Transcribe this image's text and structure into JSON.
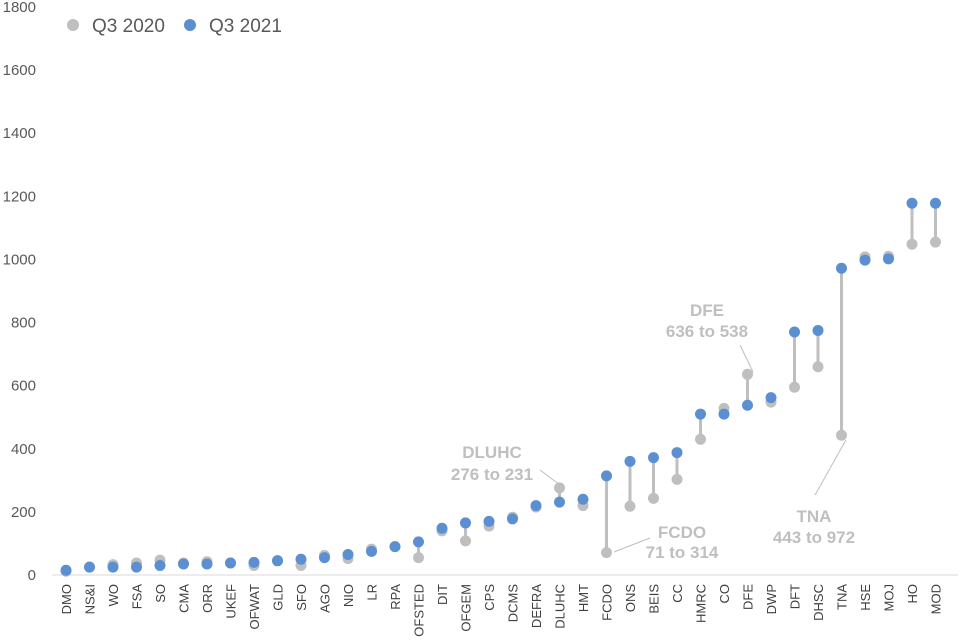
{
  "chart_data": {
    "type": "scatter",
    "categories": [
      "DMO",
      "NS&I",
      "WO",
      "FSA",
      "SO",
      "CMA",
      "ORR",
      "UKEF",
      "OFWAT",
      "GLD",
      "SFO",
      "AGO",
      "NIO",
      "LR",
      "RPA",
      "OFSTED",
      "DIT",
      "OFGEM",
      "CPS",
      "DCMS",
      "DEFRA",
      "DLUHC",
      "HMT",
      "FCDO",
      "ONS",
      "BEIS",
      "CC",
      "HMRC",
      "CO",
      "DFE",
      "DWP",
      "DFT",
      "DHSC",
      "TNA",
      "HSE",
      "MOJ",
      "HO",
      "MOD"
    ],
    "series": [
      {
        "name": "Q3 2020",
        "color": "#bfbfbf",
        "values": [
          12,
          25,
          33,
          38,
          47,
          38,
          42,
          38,
          30,
          46,
          30,
          62,
          52,
          82,
          90,
          55,
          140,
          108,
          155,
          183,
          215,
          276,
          220,
          71,
          218,
          243,
          303,
          430,
          528,
          636,
          548,
          595,
          660,
          443,
          1008,
          1010,
          1048,
          1055
        ]
      },
      {
        "name": "Q3 2021",
        "color": "#5b8fd1",
        "values": [
          15,
          25,
          25,
          25,
          30,
          35,
          35,
          38,
          40,
          45,
          50,
          55,
          65,
          75,
          90,
          105,
          148,
          165,
          170,
          178,
          220,
          231,
          240,
          314,
          360,
          372,
          388,
          510,
          510,
          538,
          562,
          770,
          775,
          972,
          998,
          1002,
          1178,
          1178
        ]
      }
    ],
    "ylim": [
      0,
      1800
    ],
    "yticks": [
      "0",
      "200",
      "400",
      "600",
      "800",
      "1000",
      "1200",
      "1400",
      "1600",
      "1800"
    ],
    "grid": false,
    "legend": "top-left",
    "annotations": [
      {
        "category": "DLUHC",
        "title": "DLUHC",
        "text": "276 to 231"
      },
      {
        "category": "FCDO",
        "title": "FCDO",
        "text": "71 to 314"
      },
      {
        "category": "DFE",
        "title": "DFE",
        "text": "636 to 538"
      },
      {
        "category": "TNA",
        "title": "TNA",
        "text": "443 to 972"
      }
    ]
  }
}
